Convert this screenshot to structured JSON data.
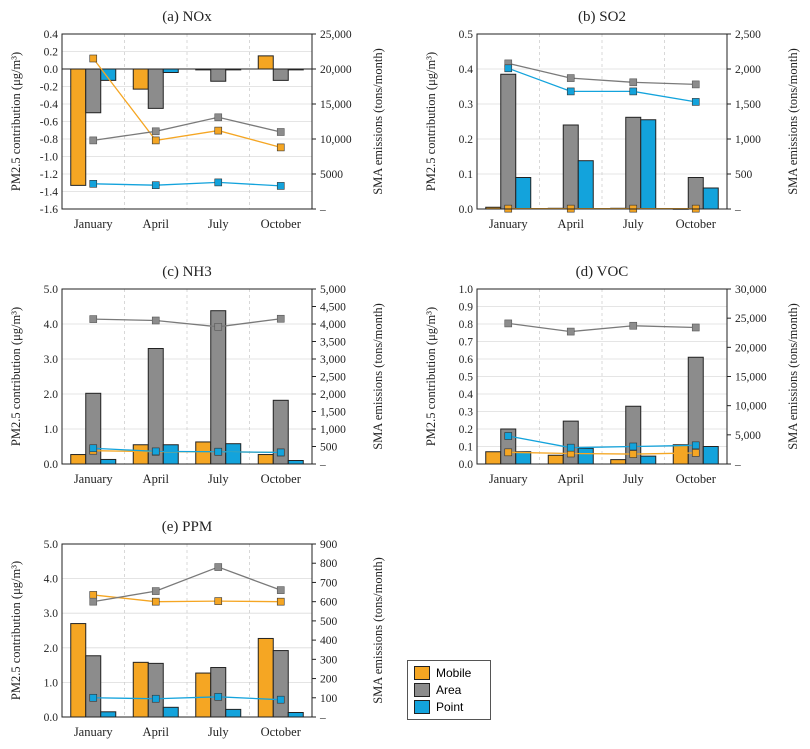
{
  "colors": {
    "mobile": "#F5A623",
    "area": "#8C8C8C",
    "point": "#13A3DC"
  },
  "legend": {
    "mobile": "Mobile",
    "area": "Area",
    "point": "Point"
  },
  "chart_data": [
    {
      "type": "bar",
      "title": "(a) NOx",
      "categories": [
        "January",
        "April",
        "July",
        "October"
      ],
      "ylabel": "PM2.5 contribution (μg/m³)",
      "y2label": "SMA emissions (tons/month)",
      "ylim": [
        -1.6,
        0.4
      ],
      "y2lim": [
        0,
        25000
      ],
      "yticks": [
        "-1.6",
        "-1.4",
        "-1.2",
        "-1.0",
        "-0.8",
        "-0.6",
        "-0.4",
        "-0.2",
        "0.0",
        "0.2",
        "0.4"
      ],
      "y2ticks": [
        "",
        "5000",
        "10,000",
        "15,000",
        "20,000",
        "25,000"
      ],
      "series": [
        {
          "name": "Mobile",
          "values": [
            -1.33,
            -0.23,
            -0.01,
            0.15
          ]
        },
        {
          "name": "Area",
          "values": [
            -0.5,
            -0.45,
            -0.14,
            -0.13
          ]
        },
        {
          "name": "Point",
          "values": [
            -0.13,
            -0.04,
            -0.01,
            -0.01
          ]
        }
      ],
      "emissions": [
        {
          "name": "Mobile",
          "values": [
            21500,
            9800,
            11200,
            8800
          ]
        },
        {
          "name": "Area",
          "values": [
            9800,
            11100,
            13100,
            11000
          ]
        },
        {
          "name": "Point",
          "values": [
            3600,
            3400,
            3800,
            3300
          ]
        }
      ]
    },
    {
      "type": "bar",
      "title": "(b) SO2",
      "categories": [
        "January",
        "April",
        "July",
        "October"
      ],
      "ylabel": "PM2.5 contribution (μg/m³)",
      "y2label": "SMA emissions (tons/month)",
      "ylim": [
        0,
        0.5
      ],
      "y2lim": [
        0,
        2500
      ],
      "yticks": [
        "0.0",
        "0.1",
        "0.2",
        "0.3",
        "0.4",
        "0.5"
      ],
      "y2ticks": [
        "",
        "500",
        "1,000",
        "1,500",
        "2,000",
        "2,500"
      ],
      "series": [
        {
          "name": "Mobile",
          "values": [
            0.005,
            0.002,
            0.002,
            0.001
          ]
        },
        {
          "name": "Area",
          "values": [
            0.385,
            0.24,
            0.262,
            0.09
          ]
        },
        {
          "name": "Point",
          "values": [
            0.09,
            0.138,
            0.255,
            0.06
          ]
        }
      ],
      "emissions": [
        {
          "name": "Mobile",
          "values": [
            5,
            5,
            5,
            5
          ]
        },
        {
          "name": "Area",
          "values": [
            2080,
            1870,
            1810,
            1780
          ]
        },
        {
          "name": "Point",
          "values": [
            2010,
            1680,
            1680,
            1530
          ]
        }
      ]
    },
    {
      "type": "bar",
      "title": "(c) NH3",
      "categories": [
        "January",
        "April",
        "July",
        "October"
      ],
      "ylabel": "PM2.5 contribution (μg/m³)",
      "y2label": "SMA emissions (tons/month)",
      "ylim": [
        0,
        5.0
      ],
      "y2lim": [
        0,
        5000
      ],
      "yticks": [
        "0.0",
        "1.0",
        "2.0",
        "3.0",
        "4.0",
        "5.0"
      ],
      "y2ticks": [
        "",
        "500",
        "1,000",
        "1,500",
        "2,000",
        "2,500",
        "3,000",
        "3,500",
        "4,000",
        "4,500",
        "5,000"
      ],
      "series": [
        {
          "name": "Mobile",
          "values": [
            0.27,
            0.55,
            0.63,
            0.27
          ]
        },
        {
          "name": "Area",
          "values": [
            2.02,
            3.3,
            4.38,
            1.82
          ]
        },
        {
          "name": "Point",
          "values": [
            0.13,
            0.55,
            0.58,
            0.1
          ]
        }
      ],
      "emissions": [
        {
          "name": "Mobile",
          "values": [
            380,
            350,
            350,
            330
          ]
        },
        {
          "name": "Area",
          "values": [
            4140,
            4100,
            3920,
            4150
          ]
        },
        {
          "name": "Point",
          "values": [
            450,
            360,
            350,
            330
          ]
        }
      ]
    },
    {
      "type": "bar",
      "title": "(d) VOC",
      "categories": [
        "January",
        "April",
        "July",
        "October"
      ],
      "ylabel": "PM2.5 contribution (μg/m³)",
      "y2label": "SMA emissions (tons/month)",
      "ylim": [
        0,
        1.0
      ],
      "y2lim": [
        0,
        30000
      ],
      "yticks": [
        "0.0",
        "0.1",
        "0.2",
        "0.3",
        "0.4",
        "0.5",
        "0.6",
        "0.7",
        "0.8",
        "0.9",
        "1.0"
      ],
      "y2ticks": [
        "",
        "5,000",
        "10,000",
        "15,000",
        "20,000",
        "25,000",
        "30,000"
      ],
      "series": [
        {
          "name": "Mobile",
          "values": [
            0.07,
            0.05,
            0.025,
            0.11
          ]
        },
        {
          "name": "Area",
          "values": [
            0.2,
            0.245,
            0.33,
            0.61
          ]
        },
        {
          "name": "Point",
          "values": [
            0.07,
            0.09,
            0.045,
            0.1
          ]
        }
      ],
      "emissions": [
        {
          "name": "Mobile",
          "values": [
            2000,
            1800,
            1700,
            1900
          ]
        },
        {
          "name": "Area",
          "values": [
            24100,
            22700,
            23700,
            23400
          ]
        },
        {
          "name": "Point",
          "values": [
            4800,
            2800,
            3000,
            3200
          ]
        }
      ]
    },
    {
      "type": "bar",
      "title": "(e) PPM",
      "categories": [
        "January",
        "April",
        "July",
        "October"
      ],
      "ylabel": "PM2.5 contribution (μg/m³)",
      "y2label": "SMA emissions (tons/month)",
      "ylim": [
        0,
        5.0
      ],
      "y2lim": [
        0,
        900
      ],
      "yticks": [
        "0.0",
        "1.0",
        "2.0",
        "3.0",
        "4.0",
        "5.0"
      ],
      "y2ticks": [
        "",
        "100",
        "200",
        "300",
        "400",
        "500",
        "600",
        "700",
        "800",
        "900"
      ],
      "series": [
        {
          "name": "Mobile",
          "values": [
            2.7,
            1.58,
            1.27,
            2.27
          ]
        },
        {
          "name": "Area",
          "values": [
            1.77,
            1.55,
            1.43,
            1.92
          ]
        },
        {
          "name": "Point",
          "values": [
            0.15,
            0.28,
            0.22,
            0.13
          ]
        }
      ],
      "emissions": [
        {
          "name": "Mobile",
          "values": [
            635,
            600,
            603,
            600
          ]
        },
        {
          "name": "Area",
          "values": [
            600,
            655,
            780,
            660
          ]
        },
        {
          "name": "Point",
          "values": [
            100,
            95,
            105,
            90
          ]
        }
      ]
    }
  ]
}
